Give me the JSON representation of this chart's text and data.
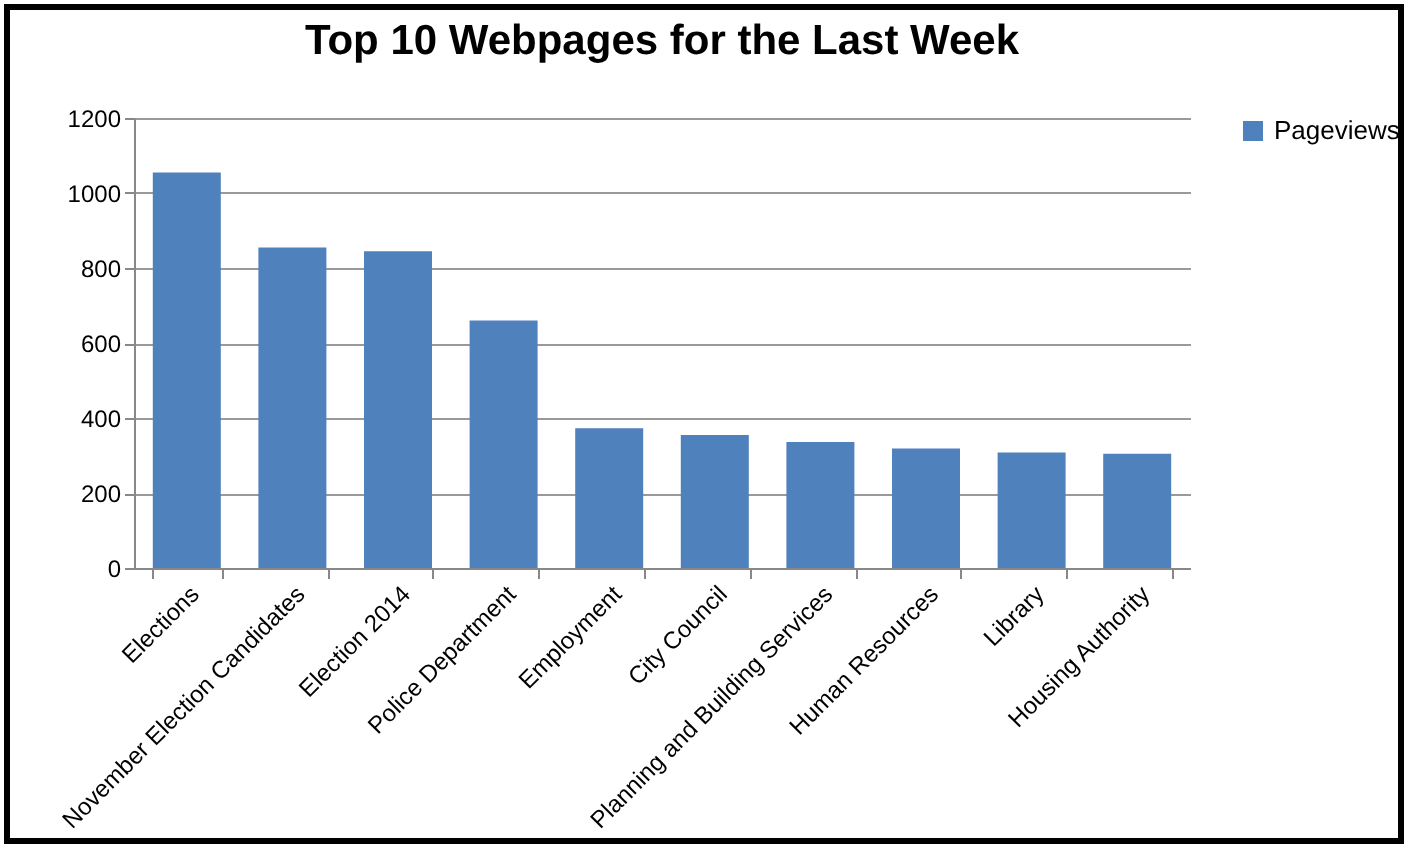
{
  "chart_data": {
    "type": "bar",
    "title": "Top 10 Webpages for the Last Week",
    "categories": [
      "Elections",
      "November Election Candidates",
      "Election 2014",
      "Police Department",
      "Employment",
      "City Council",
      "Planning and Building Services",
      "Human Resources",
      "Library",
      "Housing Authority"
    ],
    "series": [
      {
        "name": "Pageviews",
        "color": "#4f81bd",
        "values": [
          1055,
          855,
          845,
          660,
          373,
          355,
          336,
          319,
          308,
          305
        ]
      }
    ],
    "ylim": [
      0,
      1200
    ],
    "yticks": [
      0,
      200,
      400,
      600,
      800,
      1000,
      1200
    ],
    "grid": "y",
    "legend": "right"
  }
}
